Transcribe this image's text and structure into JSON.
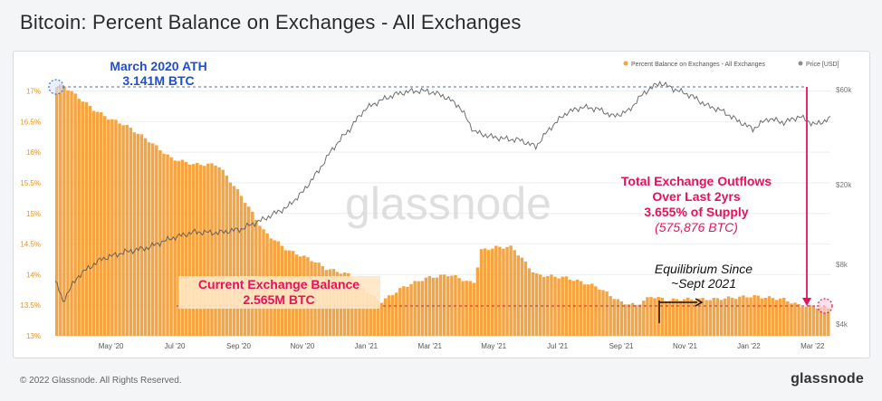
{
  "header": {
    "title": "Bitcoin: Percent Balance on Exchanges - All Exchanges"
  },
  "footer": {
    "copyright": "© 2022 Glassnode. All Rights Reserved.",
    "brand": "glassnode"
  },
  "watermark": "glassnode",
  "colors": {
    "balance": "#f5a442",
    "price": "#8e8e8e",
    "ath_annotation": "#1f4fcf",
    "callout": "#e8115b",
    "current_bg": "#ffe7c4"
  },
  "chart_data": {
    "type": "bar",
    "legend_position": "top-right",
    "legend": [
      {
        "label": "Percent Balance on Exchanges - All Exchanges",
        "color": "#f5a442"
      },
      {
        "label": "Price [USD]",
        "color": "#8e8e8e"
      }
    ],
    "x_ticks": [
      "May '20",
      "Jul '20",
      "Sep '20",
      "Nov '20",
      "Jan '21",
      "Mar '21",
      "May '21",
      "Jul '21",
      "Sep '21",
      "Nov '21",
      "Jan '22",
      "Mar '22"
    ],
    "y_left_ticks": [
      "13%",
      "13.5%",
      "14%",
      "14.5%",
      "15%",
      "15.5%",
      "16%",
      "16.5%",
      "17%"
    ],
    "y_left_range": [
      13,
      17.2
    ],
    "y_right_ticks": [
      "$4k",
      "$8k",
      "$20k",
      "$60k"
    ],
    "y_right_scale": "log",
    "y_right_range": [
      3500,
      68000
    ],
    "balance_series": {
      "name": "Percent Balance on Exchanges - All Exchanges",
      "x": [
        0,
        1,
        3,
        5,
        7,
        9,
        12,
        15,
        18,
        21,
        24,
        27,
        30,
        33,
        35,
        38,
        40,
        42,
        45,
        48,
        51,
        54,
        55,
        57,
        59,
        62,
        66,
        70,
        73,
        75,
        77,
        79,
        81,
        85,
        90,
        94,
        96,
        100
      ],
      "y": [
        17.05,
        17.1,
        16.9,
        16.7,
        16.55,
        16.45,
        16.2,
        15.9,
        15.8,
        15.8,
        15.3,
        14.7,
        14.4,
        14.25,
        14.1,
        14.0,
        13.75,
        13.55,
        13.8,
        13.95,
        14.0,
        13.85,
        14.4,
        14.45,
        14.45,
        14.0,
        13.95,
        13.8,
        13.55,
        13.5,
        13.65,
        13.58,
        13.6,
        13.6,
        13.65,
        13.6,
        13.5,
        13.45
      ]
    },
    "price_series": {
      "name": "Price [USD]",
      "x": [
        0,
        1,
        3,
        6,
        9,
        12,
        15,
        18,
        21,
        24,
        27,
        30,
        32,
        34,
        36,
        38,
        40,
        42,
        44,
        46,
        48,
        50,
        52,
        54,
        56,
        58,
        60,
        62,
        64,
        66,
        68,
        70,
        72,
        74,
        76,
        78,
        80,
        82,
        84,
        86,
        88,
        90,
        92,
        94,
        96,
        98,
        100
      ],
      "y": [
        6600,
        5200,
        7000,
        8500,
        9200,
        9700,
        10800,
        11600,
        11500,
        12000,
        13500,
        15500,
        18500,
        23500,
        31000,
        38000,
        48000,
        53000,
        57000,
        59000,
        59000,
        56000,
        50000,
        37000,
        35000,
        34000,
        33500,
        31000,
        39000,
        46000,
        49000,
        48000,
        44000,
        47000,
        58000,
        65000,
        60000,
        56000,
        50000,
        47000,
        42000,
        38000,
        43000,
        41000,
        44000,
        40000,
        43000
      ]
    },
    "annotations": {
      "ath_line1": "March 2020 ATH",
      "ath_line2": "3.141M BTC",
      "outflow_line1": "Total Exchange Outflows",
      "outflow_line2": "Over Last 2yrs",
      "outflow_line3": "3.655% of Supply",
      "outflow_line4": "(575,876 BTC)",
      "current_line1": "Current Exchange Balance",
      "current_line2": "2.565M BTC",
      "equilibrium_line1": "Equilibrium Since",
      "equilibrium_line2": "~Sept 2021"
    }
  }
}
